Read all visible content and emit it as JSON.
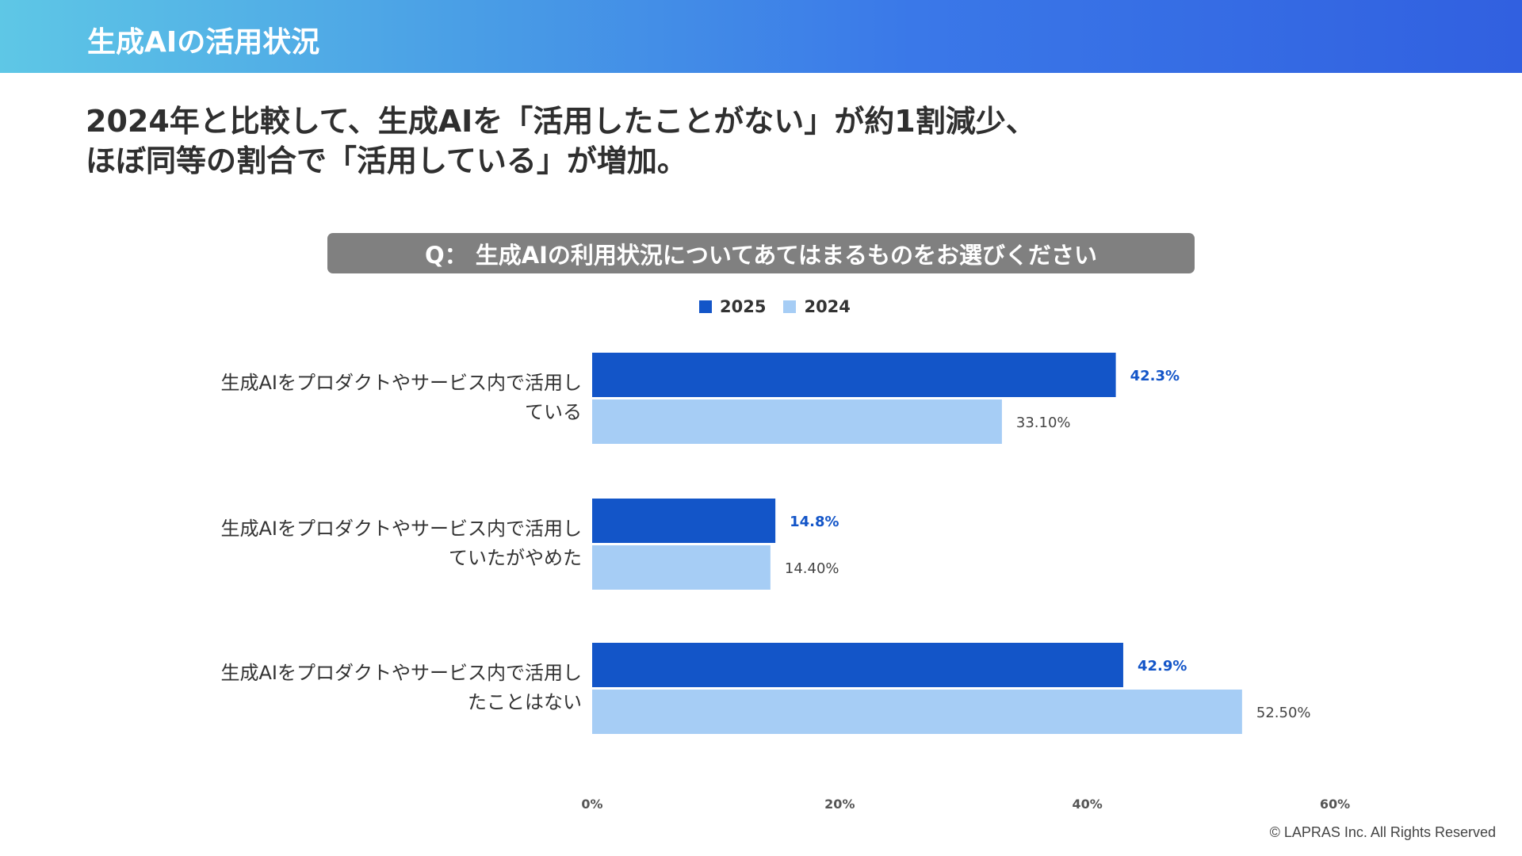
{
  "header": {
    "title": "生成AIの活用状況"
  },
  "headline": {
    "line1": "2024年と比較して、生成AIを「活用したことがない」が約1割減少、",
    "line2": "ほぼ同等の割合で「活用している」が増加。"
  },
  "question": "Q： 生成AIの利用状況についてあてはまるものをお選びください",
  "legend": {
    "s1": "2025",
    "s2": "2024"
  },
  "footer": {
    "copyright": "© LAPRAS Inc. All Rights Reserved"
  },
  "colors": {
    "s2025": "#1355c8",
    "s2024": "#a6cdf5"
  },
  "chart_data": {
    "type": "bar",
    "orientation": "horizontal",
    "categories": [
      [
        "生成AIをプロダクトやサービス内で活用し",
        "ている"
      ],
      [
        "生成AIをプロダクトやサービス内で活用し",
        "ていたがやめた"
      ],
      [
        "生成AIをプロダクトやサービス内で活用し",
        "たことはない"
      ]
    ],
    "series": [
      {
        "name": "2025",
        "values": [
          42.3,
          14.8,
          42.9
        ],
        "labels": [
          "42.3%",
          "14.8%",
          "42.9%"
        ],
        "color": "#1355c8"
      },
      {
        "name": "2024",
        "values": [
          33.1,
          14.4,
          52.5
        ],
        "labels": [
          "33.10%",
          "14.40%",
          "52.50%"
        ],
        "color": "#a6cdf5"
      }
    ],
    "xlim": [
      0,
      60
    ],
    "xticks": [
      0,
      20,
      40,
      60
    ],
    "xtick_labels": [
      "0%",
      "20%",
      "40%",
      "60%"
    ],
    "legend_position": "top-center",
    "grid": false
  }
}
